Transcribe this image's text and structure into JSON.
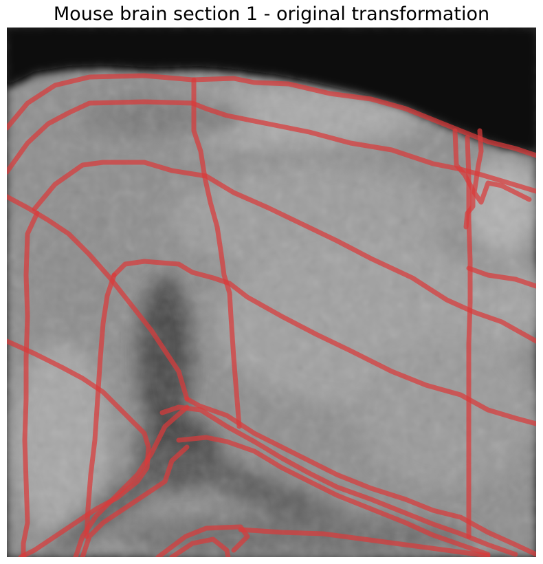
{
  "figure": {
    "title": "Mouse brain section 1 - original transformation"
  },
  "colors": {
    "overlay": "#d93a3a",
    "background_dark": "#0b0b0b",
    "tissue_light": "#a8a8a8"
  }
}
